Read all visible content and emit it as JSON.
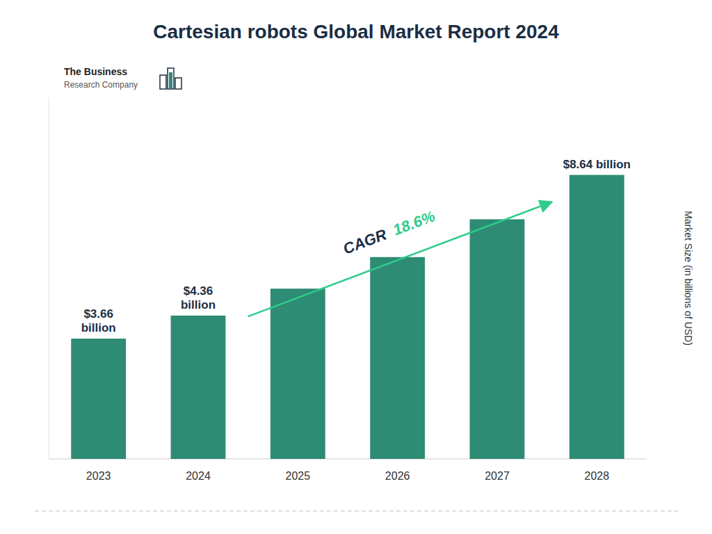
{
  "chart_data": {
    "type": "bar",
    "title": "Cartesian robots Global Market Report 2024",
    "ylabel": "Market Size (in billions of USD)",
    "categories": [
      "2023",
      "2024",
      "2025",
      "2026",
      "2027",
      "2028"
    ],
    "values": [
      3.66,
      4.36,
      5.18,
      6.14,
      7.29,
      8.64
    ],
    "color": "#2E8B74",
    "ylim": [
      0,
      11.0
    ],
    "tick_labels": "x",
    "grid": false,
    "data_labels": true,
    "value_labels": [
      "$3.66\nbillion",
      "$4.36\nbillion",
      null,
      null,
      null,
      "$8.64 billion"
    ],
    "annotations": [
      "CAGR",
      "18.6%",
      "The Business",
      "Research Company"
    ]
  }
}
